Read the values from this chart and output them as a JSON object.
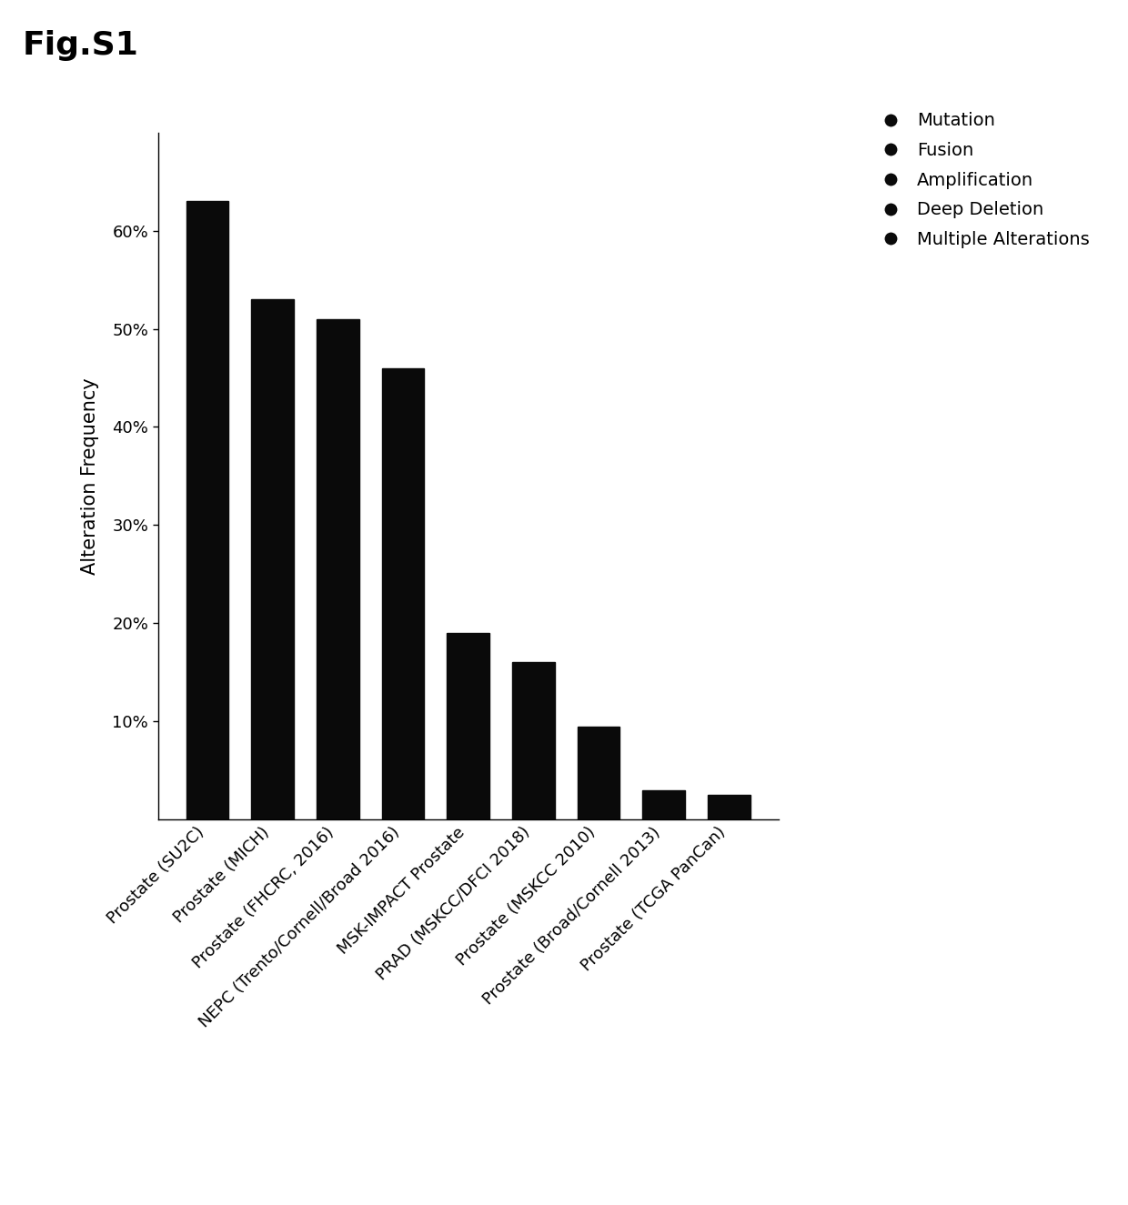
{
  "categories": [
    "Prostate (SU2C)",
    "Prostate (MICH)",
    "Prostate (FHCRC, 2016)",
    "NEPC (Trento/Cornell/Broad 2016)",
    "MSK-IMPACT Prostate",
    "PRAD (MSKCC/DFCI 2018)",
    "Prostate (MSKCC 2010)",
    "Prostate (Broad/Cornell 2013)",
    "Prostate (TCGA PanCan)"
  ],
  "values": [
    63,
    53,
    51,
    46,
    19,
    16,
    9.5,
    3,
    2.5
  ],
  "bar_color": "#0a0a0a",
  "ylabel": "Alteration Frequency",
  "yticks": [
    10,
    20,
    30,
    40,
    50,
    60
  ],
  "ytick_labels": [
    "10%",
    "20%",
    "30%",
    "40%",
    "50%",
    "60%"
  ],
  "ylim": [
    0,
    70
  ],
  "title": "Fig.S1",
  "legend_labels": [
    "Mutation",
    "Fusion",
    "Amplification",
    "Deep Deletion",
    "Multiple Alterations"
  ],
  "legend_color": "#0a0a0a",
  "background_color": "#ffffff",
  "title_fontsize": 26,
  "axis_label_fontsize": 15,
  "tick_fontsize": 13,
  "legend_fontsize": 14
}
